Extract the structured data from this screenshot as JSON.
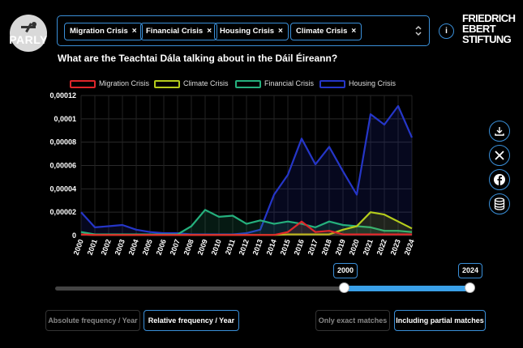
{
  "brand": {
    "name": "PARLY"
  },
  "filters": {
    "chips": [
      "Migration Crisis",
      "Financial Crisis",
      "Housing Crisis",
      "Climate Crisis"
    ],
    "remove_glyph": "×",
    "caret": "⌃⌄"
  },
  "info_label": "i",
  "foundation": {
    "line1": "FRIEDRICH",
    "line2": "EBERT",
    "line3": "STIFTUNG"
  },
  "headline": "What are the Teachtai Dála talking about in the Dáil Éireann?",
  "legend": [
    "Migration Crisis",
    "Climate Crisis",
    "Financial Crisis",
    "Housing Crisis"
  ],
  "colors": {
    "migration": "#e0262a",
    "climate": "#b5cc1c",
    "financial": "#25b07d",
    "housing": "#2536c8",
    "accent": "#3a8fd8"
  },
  "social": [
    "download-icon",
    "x-icon",
    "facebook-icon",
    "database-icon"
  ],
  "slider": {
    "start": "2000",
    "end": "2024",
    "value_start": 2000,
    "value_end": 2024
  },
  "frequency_buttons": {
    "absolute": "Absolute frequency / Year",
    "relative": "Relative frequency / Year"
  },
  "match_buttons": {
    "exact": "Only exact matches",
    "partial": "Including partial matches"
  },
  "chart_data": {
    "type": "area",
    "x": [
      2000,
      2001,
      2002,
      2003,
      2004,
      2005,
      2006,
      2007,
      2008,
      2009,
      2010,
      2011,
      2012,
      2013,
      2014,
      2015,
      2016,
      2017,
      2018,
      2019,
      2020,
      2021,
      2022,
      2023,
      2024
    ],
    "ylim": [
      0,
      0.00012
    ],
    "yticks": [
      0,
      2e-05,
      4e-05,
      6e-05,
      8e-05,
      0.0001,
      0.00012
    ],
    "ytick_labels": [
      "0",
      "0,00002",
      "0,00004",
      "0,00006",
      "0,00008",
      "0,0001",
      "0,00012"
    ],
    "grid": true,
    "legend_position": "top",
    "series": [
      {
        "name": "Migration Crisis",
        "key": "migration",
        "values": [
          1e-06,
          5e-07,
          5e-07,
          5e-07,
          5e-07,
          5e-07,
          5e-07,
          5e-07,
          5e-07,
          5e-07,
          5e-07,
          5e-07,
          5e-07,
          5e-07,
          5e-07,
          3e-06,
          1.2e-05,
          3e-06,
          4e-06,
          1e-06,
          1e-06,
          1e-06,
          1e-06,
          1e-06,
          1e-06
        ]
      },
      {
        "name": "Climate Crisis",
        "key": "climate",
        "values": [
          1e-06,
          5e-07,
          5e-07,
          5e-07,
          5e-07,
          5e-07,
          5e-07,
          5e-07,
          5e-07,
          5e-07,
          5e-07,
          5e-07,
          5e-07,
          5e-07,
          5e-07,
          1e-06,
          1e-06,
          1e-06,
          1e-06,
          5e-06,
          8e-06,
          2e-05,
          1.8e-05,
          1.2e-05,
          6e-06
        ]
      },
      {
        "name": "Financial Crisis",
        "key": "financial",
        "values": [
          3e-06,
          1e-06,
          1e-06,
          1e-06,
          1e-06,
          1e-06,
          1e-06,
          1e-06,
          8e-06,
          2.2e-05,
          1.6e-05,
          1.7e-05,
          1e-05,
          1.3e-05,
          1e-05,
          1.2e-05,
          1e-05,
          7e-06,
          1.2e-05,
          9e-06,
          8e-06,
          7e-06,
          4e-06,
          4e-06,
          3e-06
        ]
      },
      {
        "name": "Housing Crisis",
        "key": "housing",
        "values": [
          2e-05,
          7e-06,
          8e-06,
          9e-06,
          5e-06,
          3e-06,
          2e-06,
          2e-06,
          1e-06,
          1e-06,
          1e-06,
          1e-06,
          2e-06,
          5e-06,
          3.5e-05,
          5.2e-05,
          8.3e-05,
          6.1e-05,
          7.6e-05,
          5.5e-05,
          3.5e-05,
          0.000104,
          9.5e-05,
          0.000111,
          8.4e-05
        ]
      }
    ]
  }
}
